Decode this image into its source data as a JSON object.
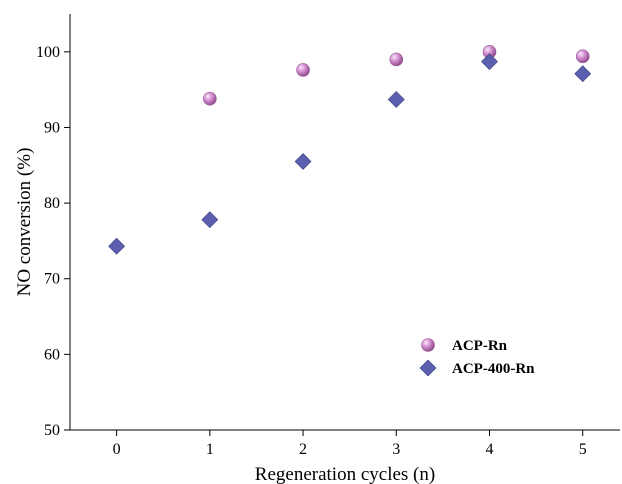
{
  "chart_data": {
    "type": "scatter",
    "xlabel": "Regeneration cycles (n)",
    "ylabel": "NO conversion (%)",
    "xlim": [
      -0.5,
      5.4
    ],
    "ylim": [
      50,
      105
    ],
    "xticks": [
      0,
      1,
      2,
      3,
      4,
      5
    ],
    "yticks": [
      50,
      60,
      70,
      80,
      90,
      100
    ],
    "grid": false,
    "legend_position": "bottom-right",
    "series": [
      {
        "name": "ACP-Rn",
        "marker": "sphere",
        "color": "#c77ac4",
        "x": [
          1,
          2,
          3,
          4,
          5
        ],
        "y": [
          93.8,
          97.6,
          99.0,
          100.0,
          99.4
        ]
      },
      {
        "name": "ACP-400-Rn",
        "marker": "diamond",
        "color": "#5b5fad",
        "x": [
          0,
          1,
          2,
          3,
          4,
          5
        ],
        "y": [
          74.3,
          77.8,
          85.5,
          93.7,
          98.7,
          97.1
        ]
      }
    ]
  }
}
